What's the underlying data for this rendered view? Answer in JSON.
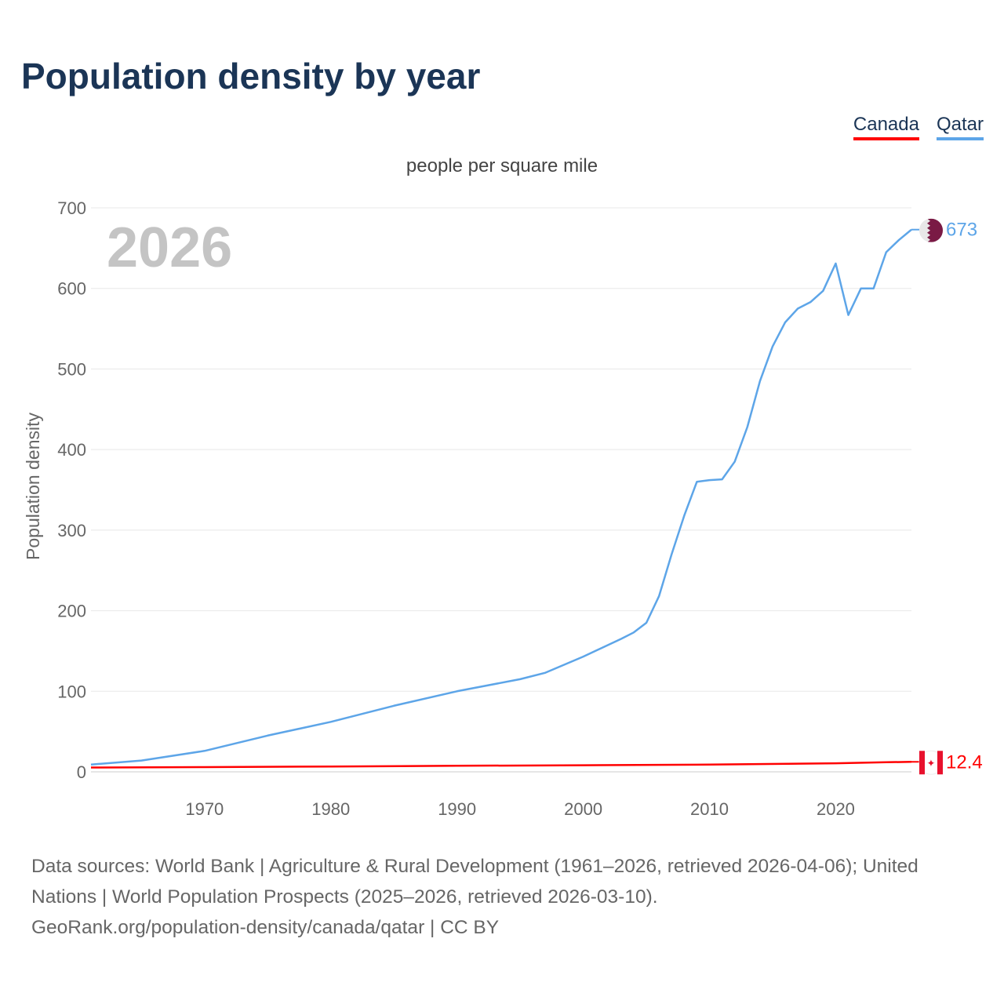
{
  "title": "Population density by year",
  "legend": [
    {
      "name": "Canada",
      "color": "#ff0000"
    },
    {
      "name": "Qatar",
      "color": "#5da5e8"
    }
  ],
  "footer": {
    "line1": "Data sources: World Bank | Agriculture & Rural Development (1961–2026, retrieved 2026-04-06); United Nations | World Population Prospects (2025–2026, retrieved 2026-03-10).",
    "line2": "GeoRank.org/population-density/canada/qatar | CC BY"
  },
  "chart_data": {
    "type": "line",
    "subtitle": "people per square mile",
    "ylabel": "Population density",
    "year_label": "2026",
    "xlim": [
      1961,
      2026
    ],
    "ylim": [
      0,
      700
    ],
    "xticks": [
      1970,
      1980,
      1990,
      2000,
      2010,
      2020
    ],
    "yticks": [
      0,
      100,
      200,
      300,
      400,
      500,
      600,
      700
    ],
    "series": [
      {
        "name": "Qatar",
        "color": "#5da5e8",
        "end_label": "673",
        "x": [
          1961,
          1965,
          1970,
          1975,
          1980,
          1985,
          1990,
          1995,
          1997,
          2000,
          2003,
          2004,
          2005,
          2006,
          2007,
          2008,
          2009,
          2010,
          2011,
          2012,
          2013,
          2014,
          2015,
          2016,
          2017,
          2018,
          2019,
          2020,
          2021,
          2022,
          2023,
          2024,
          2025,
          2026
        ],
        "values": [
          9,
          14,
          26,
          45,
          62,
          82,
          100,
          115,
          123,
          143,
          165,
          173,
          185,
          218,
          270,
          318,
          360,
          362,
          363,
          385,
          428,
          485,
          528,
          558,
          575,
          583,
          597,
          631,
          567,
          600,
          600,
          645,
          660,
          673
        ]
      },
      {
        "name": "Canada",
        "color": "#ff0000",
        "end_label": "12.4",
        "x": [
          1961,
          1970,
          1980,
          1990,
          2000,
          2010,
          2020,
          2024,
          2026
        ],
        "values": [
          5.3,
          5.9,
          6.6,
          7.5,
          8.2,
          9.0,
          10.6,
          11.9,
          12.4
        ]
      }
    ]
  }
}
